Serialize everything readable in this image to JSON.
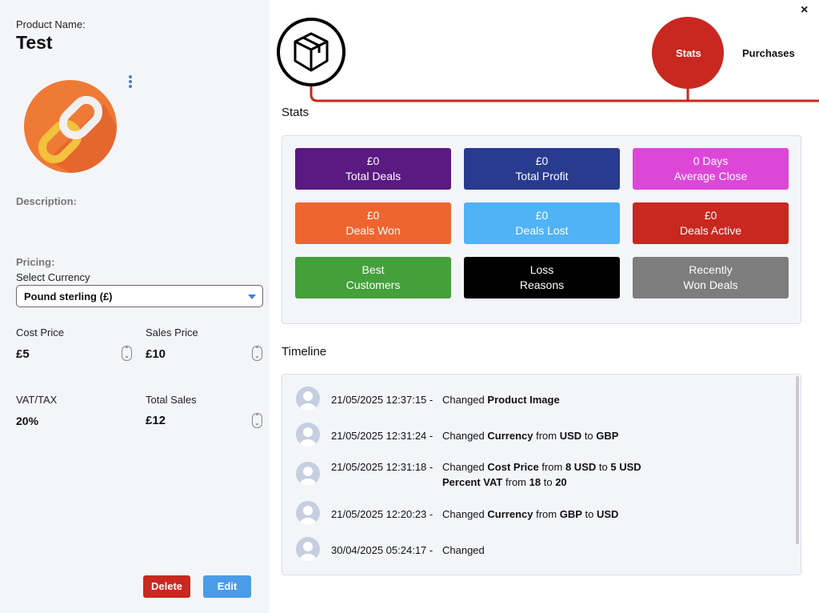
{
  "product": {
    "name_label": "Product Name:",
    "name": "Test",
    "description_label": "Description:",
    "pricing_label": "Pricing:",
    "currency_label": "Select Currency",
    "currency": "Pound sterling (£)",
    "cost_price_label": "Cost Price",
    "cost_price": "£5",
    "sales_price_label": "Sales Price",
    "sales_price": "£10",
    "vat_label": "VAT/TAX",
    "vat": "20%",
    "total_sales_label": "Total Sales",
    "total_sales": "£12"
  },
  "actions": {
    "delete": "Delete",
    "edit": "Edit"
  },
  "close": "×",
  "tabs": [
    "Stats",
    "Purchases"
  ],
  "stats": {
    "title": "Stats",
    "tiles": [
      {
        "lines": [
          "£0",
          "Total Deals"
        ],
        "color": "#5a1a82"
      },
      {
        "lines": [
          "£0",
          "Total Profit"
        ],
        "color": "#283b8f"
      },
      {
        "lines": [
          "0 Days",
          "Average Close"
        ],
        "color": "#de46d8"
      },
      {
        "lines": [
          "£0",
          "Deals Won"
        ],
        "color": "#ee6530"
      },
      {
        "lines": [
          "£0",
          "Deals Lost"
        ],
        "color": "#4fb3f5"
      },
      {
        "lines": [
          "£0",
          "Deals Active"
        ],
        "color": "#c8281f"
      },
      {
        "lines": [
          "Best",
          "Customers"
        ],
        "color": "#44a03a"
      },
      {
        "lines": [
          "Loss",
          "Reasons"
        ],
        "color": "#000000"
      },
      {
        "lines": [
          "Recently",
          "Won Deals"
        ],
        "color": "#7d7d7d"
      }
    ]
  },
  "timeline": {
    "title": "Timeline",
    "entries": [
      {
        "time": "21/05/2025 12:37:15 -",
        "lines": [
          [
            {
              "text": "Changed",
              "bold": false
            },
            {
              "text": "Product Image",
              "bold": true
            }
          ]
        ]
      },
      {
        "time": "21/05/2025 12:31:24 -",
        "lines": [
          [
            {
              "text": "Changed",
              "bold": false
            },
            {
              "text": "Currency",
              "bold": true
            },
            {
              "text": "from",
              "bold": false
            },
            {
              "text": "USD",
              "bold": true
            },
            {
              "text": "to",
              "bold": false
            },
            {
              "text": "GBP",
              "bold": true
            }
          ]
        ]
      },
      {
        "time": "21/05/2025 12:31:18 -",
        "lines": [
          [
            {
              "text": "Changed",
              "bold": false
            },
            {
              "text": "Cost Price",
              "bold": true
            },
            {
              "text": "from",
              "bold": false
            },
            {
              "text": "8 USD",
              "bold": true
            },
            {
              "text": "to",
              "bold": false
            },
            {
              "text": "5 USD",
              "bold": true
            }
          ],
          [
            {
              "text": "Percent VAT",
              "bold": true
            },
            {
              "text": "from",
              "bold": false
            },
            {
              "text": "18",
              "bold": true
            },
            {
              "text": "to",
              "bold": false
            },
            {
              "text": "20",
              "bold": true
            }
          ]
        ]
      },
      {
        "time": "21/05/2025 12:20:23 -",
        "lines": [
          [
            {
              "text": "Changed",
              "bold": false
            },
            {
              "text": "Currency",
              "bold": true
            },
            {
              "text": "from",
              "bold": false
            },
            {
              "text": "GBP",
              "bold": true
            },
            {
              "text": "to",
              "bold": false
            },
            {
              "text": "USD",
              "bold": true
            }
          ]
        ]
      },
      {
        "time": "30/04/2025 05:24:17 -",
        "lines": [
          [
            {
              "text": "Changed",
              "bold": false
            }
          ]
        ]
      }
    ]
  }
}
